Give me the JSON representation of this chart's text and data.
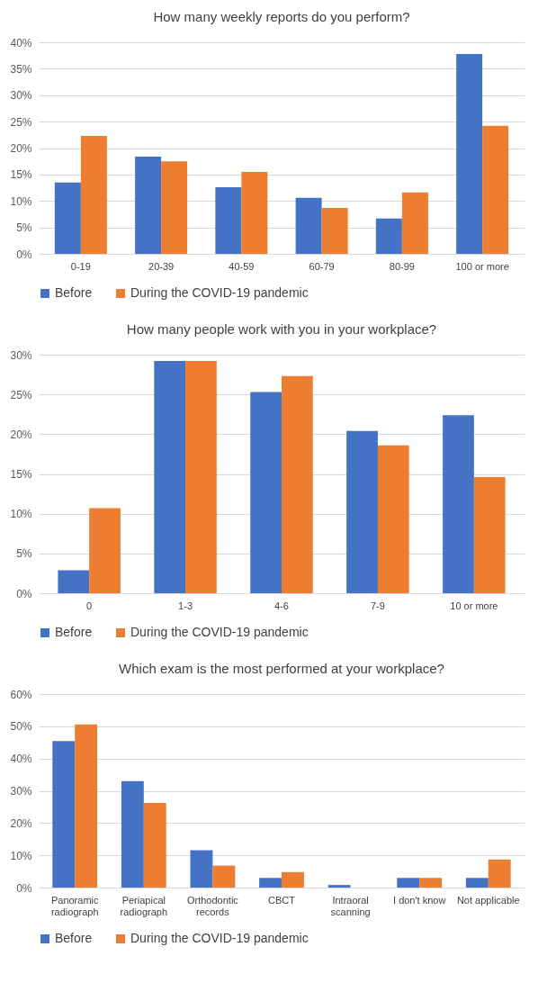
{
  "chart_data": [
    {
      "type": "bar",
      "title": "How many weekly reports do you perform?",
      "categories": [
        "0-19",
        "20-39",
        "40-59",
        "60-79",
        "80-99",
        "100 or more"
      ],
      "series": [
        {
          "name": "Before",
          "color": "#4472c4",
          "values": [
            13.5,
            18.4,
            12.6,
            10.6,
            6.7,
            37.8
          ]
        },
        {
          "name": "During the COVID-19 pandemic",
          "color": "#ed7d31",
          "values": [
            22.3,
            17.5,
            15.5,
            8.7,
            11.6,
            24.2
          ]
        }
      ],
      "ylim": [
        0,
        40
      ],
      "yticks": [
        {
          "value": 0,
          "label": "0%"
        },
        {
          "value": 5,
          "label": "5%"
        },
        {
          "value": 10,
          "label": "10%"
        },
        {
          "value": 15,
          "label": "15%"
        },
        {
          "value": 20,
          "label": "20%"
        },
        {
          "value": 25,
          "label": "25%"
        },
        {
          "value": 30,
          "label": "30%"
        },
        {
          "value": 35,
          "label": "35%"
        },
        {
          "value": 40,
          "label": "40%"
        }
      ],
      "grid": "y",
      "legend": "bottom"
    },
    {
      "type": "bar",
      "title": "How many people work with you in your workplace?",
      "categories": [
        "0",
        "1-3",
        "4-6",
        "7-9",
        "10 or more"
      ],
      "series": [
        {
          "name": "Before",
          "color": "#4472c4",
          "values": [
            2.9,
            29.2,
            25.3,
            20.4,
            22.4
          ]
        },
        {
          "name": "During the COVID-19 pandemic",
          "color": "#ed7d31",
          "values": [
            10.7,
            29.2,
            27.3,
            18.6,
            14.6
          ]
        }
      ],
      "ylim": [
        0,
        30
      ],
      "yticks": [
        {
          "value": 0,
          "label": "0%"
        },
        {
          "value": 5,
          "label": "5%"
        },
        {
          "value": 10,
          "label": "10%"
        },
        {
          "value": 15,
          "label": "15%"
        },
        {
          "value": 20,
          "label": "20%"
        },
        {
          "value": 25,
          "label": "25%"
        },
        {
          "value": 30,
          "label": "30%"
        }
      ],
      "grid": "y",
      "legend": "bottom"
    },
    {
      "type": "bar",
      "title": "Which exam is the most performed at your workplace?",
      "categories": [
        "Panoramic radiograph",
        "Periapical radiograph",
        "Orthodontic records",
        "CBCT",
        "Intraoral scanning",
        "I don't know",
        "Not applicable"
      ],
      "series": [
        {
          "name": "Before",
          "color": "#4472c4",
          "values": [
            45.4,
            33.0,
            11.6,
            3.0,
            0.8,
            3.0,
            3.0
          ]
        },
        {
          "name": "During the COVID-19 pandemic",
          "color": "#ed7d31",
          "values": [
            50.6,
            26.2,
            6.8,
            4.8,
            0,
            3.0,
            8.7
          ]
        }
      ],
      "ylim": [
        0,
        60
      ],
      "yticks": [
        {
          "value": 0,
          "label": "0%"
        },
        {
          "value": 10,
          "label": "10%"
        },
        {
          "value": 20,
          "label": "20%"
        },
        {
          "value": 30,
          "label": "30%"
        },
        {
          "value": 40,
          "label": "40%"
        },
        {
          "value": 50,
          "label": "50%"
        },
        {
          "value": 60,
          "label": "60%"
        }
      ],
      "grid": "y",
      "legend": "bottom"
    }
  ]
}
